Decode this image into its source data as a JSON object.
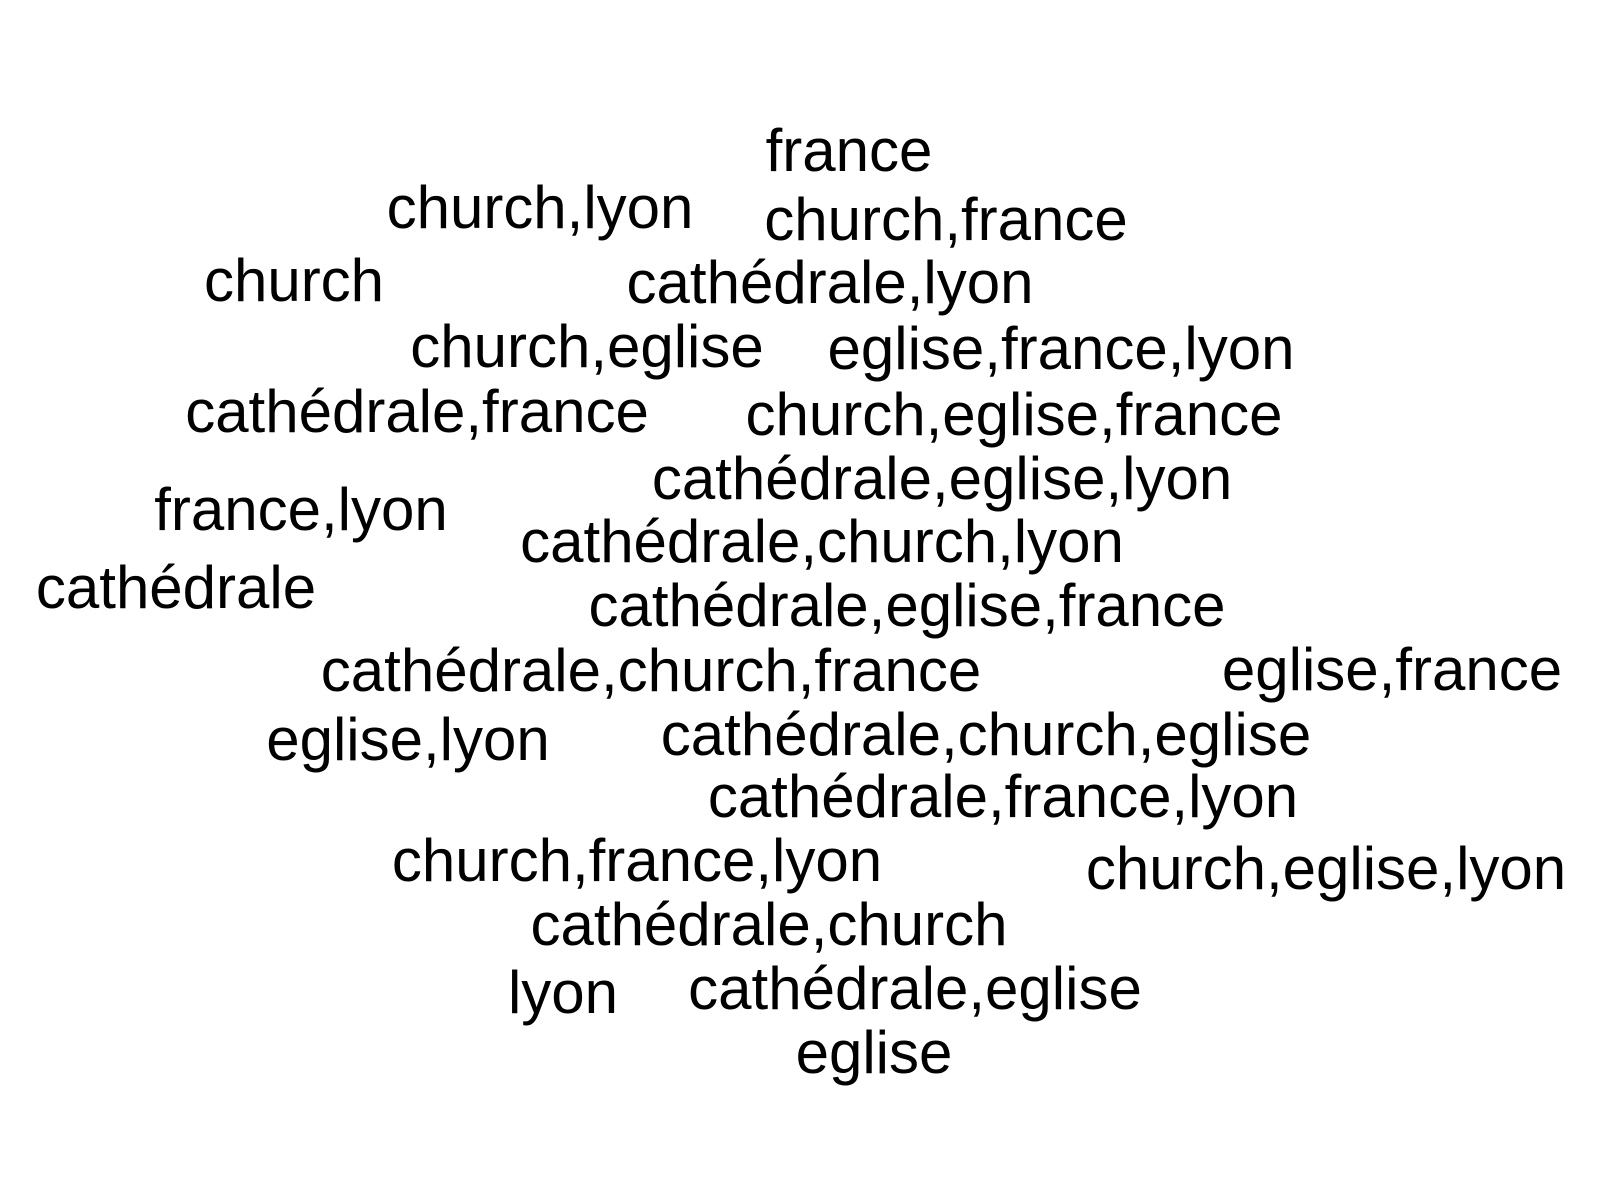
{
  "words": [
    "france",
    "church,lyon",
    "church,france",
    "church",
    "cathédrale,lyon",
    "church,eglise",
    "eglise,france,lyon",
    "cathédrale,france",
    "church,eglise,france",
    "cathédrale,eglise,lyon",
    "france,lyon",
    "cathédrale,church,lyon",
    "cathédrale",
    "cathédrale,eglise,france",
    "cathédrale,church,france",
    "eglise,france",
    "eglise,lyon",
    "cathédrale,church,eglise",
    "cathédrale,france,lyon",
    "church,france,lyon",
    "church,eglise,lyon",
    "cathédrale,church",
    "lyon",
    "cathédrale,eglise",
    "eglise"
  ]
}
